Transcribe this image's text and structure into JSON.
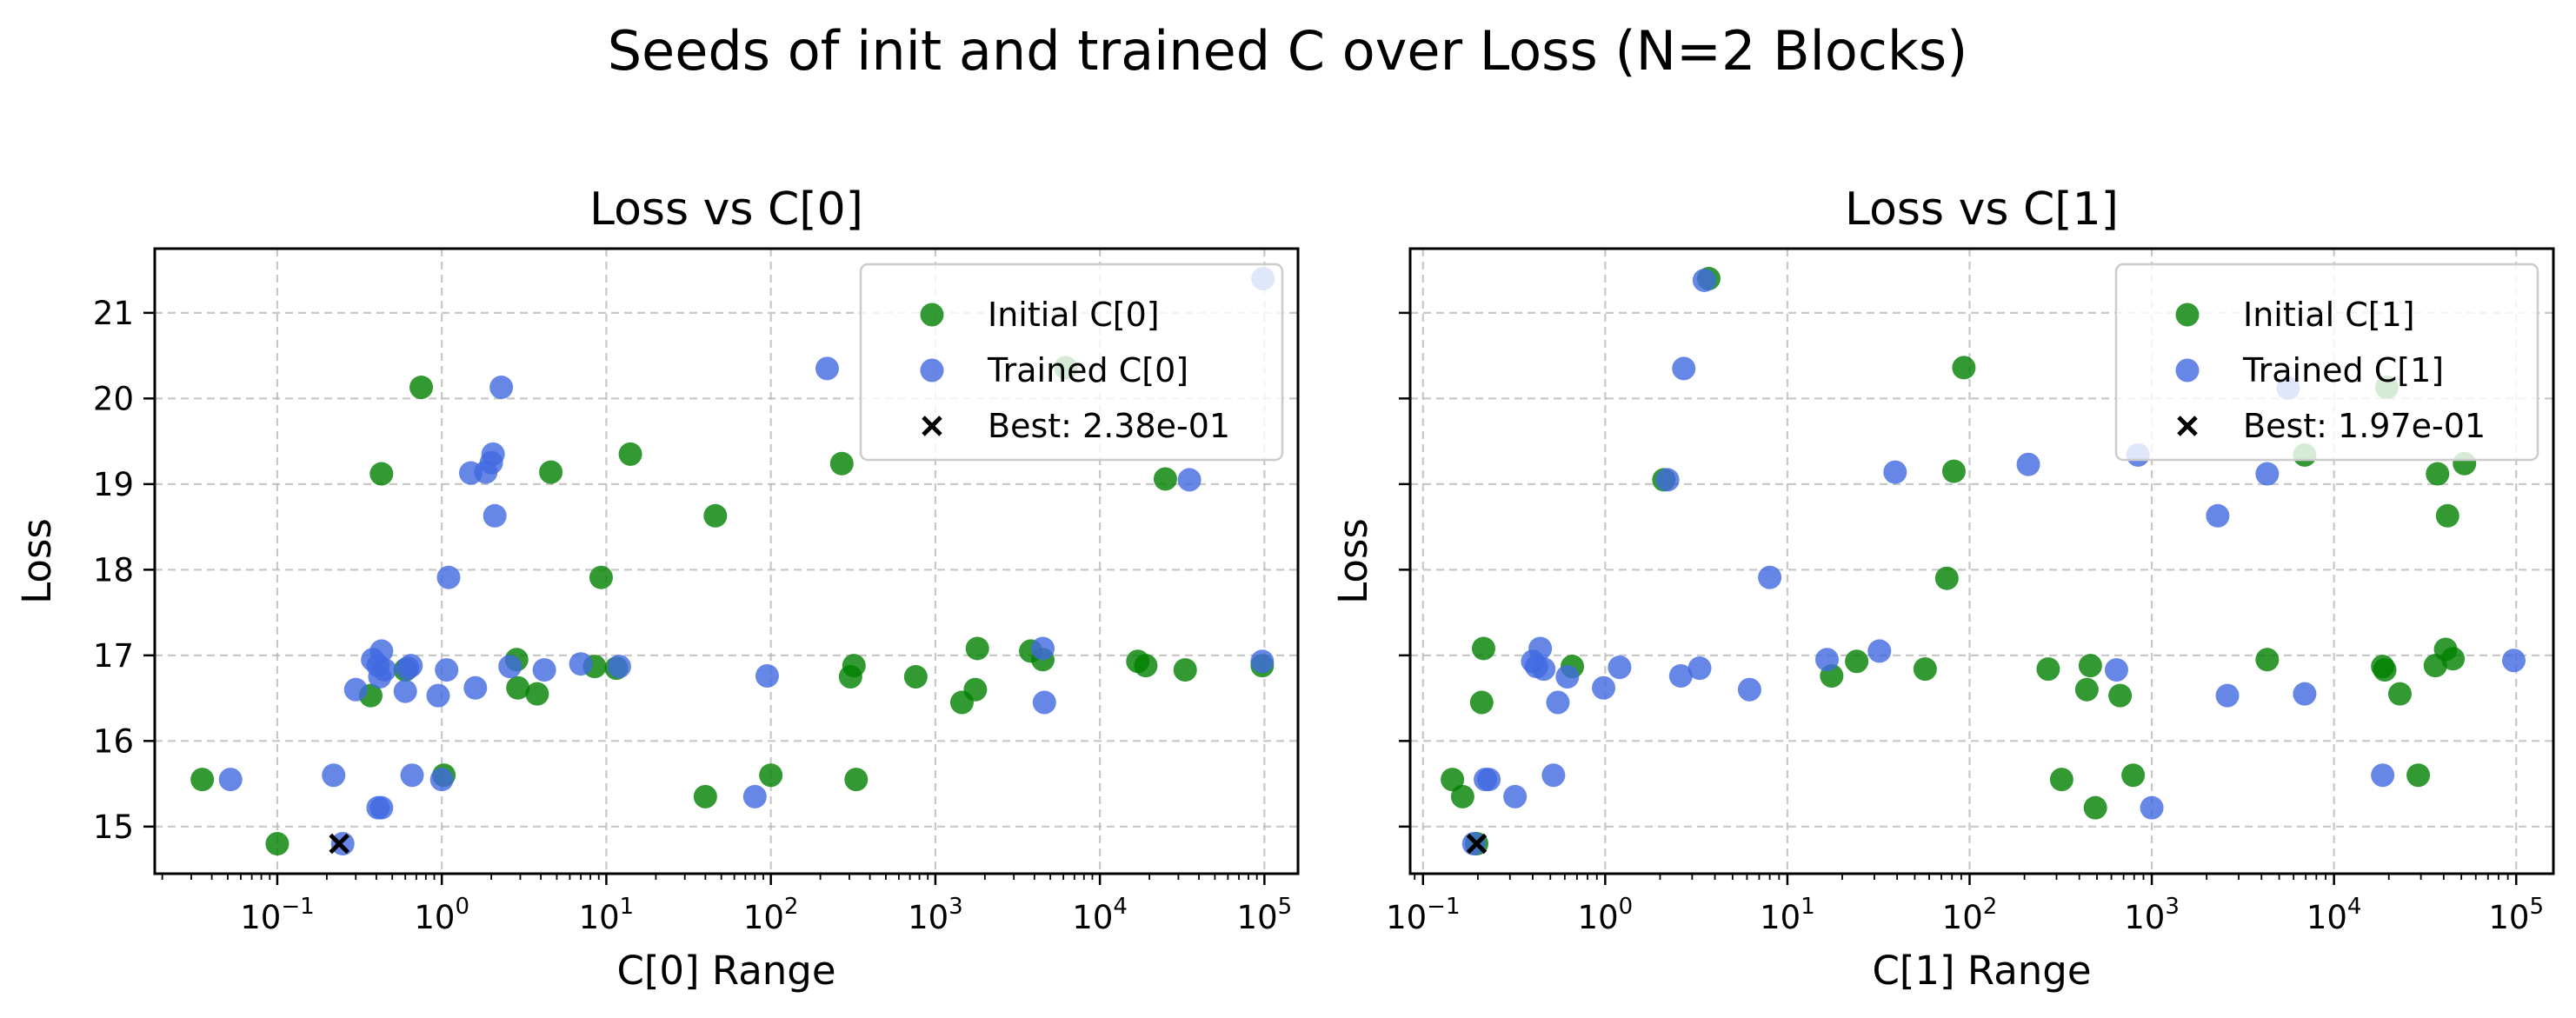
{
  "chart_data": {
    "title": "Seeds of init and trained C over Loss (N=2 Blocks)",
    "colors": {
      "initial": "#008000",
      "trained": "#4169E1",
      "best": "#000000"
    },
    "panels": [
      {
        "type": "scatter",
        "title": "Loss vs C[0]",
        "xlabel": "C[0] Range",
        "ylabel": "Loss",
        "xscale": "log",
        "xlim": [
          0.018,
          160000
        ],
        "ylim": [
          14.45,
          21.75
        ],
        "xticks": [
          0.1,
          1,
          10,
          100,
          1000,
          10000,
          100000
        ],
        "yticks": [
          15,
          16,
          17,
          18,
          19,
          20,
          21
        ],
        "grid": true,
        "legend_position": "top-right",
        "series": [
          {
            "name": "Initial C[0]",
            "role": "initial",
            "points": [
              [
                0.035,
                15.55
              ],
              [
                0.1,
                14.8
              ],
              [
                0.37,
                16.53
              ],
              [
                0.43,
                19.12
              ],
              [
                0.6,
                16.83
              ],
              [
                0.75,
                20.13
              ],
              [
                1.03,
                15.6
              ],
              [
                2.85,
                16.95
              ],
              [
                2.9,
                16.62
              ],
              [
                3.8,
                16.55
              ],
              [
                4.6,
                19.14
              ],
              [
                8.5,
                16.87
              ],
              [
                9.3,
                17.91
              ],
              [
                11.5,
                16.85
              ],
              [
                14,
                19.35
              ],
              [
                40,
                15.35
              ],
              [
                46,
                18.63
              ],
              [
                100,
                15.6
              ],
              [
                270,
                19.24
              ],
              [
                305,
                16.75
              ],
              [
                320,
                16.88
              ],
              [
                330,
                15.55
              ],
              [
                760,
                16.75
              ],
              [
                1450,
                16.45
              ],
              [
                1750,
                16.6
              ],
              [
                1800,
                17.08
              ],
              [
                3800,
                17.05
              ],
              [
                4500,
                16.95
              ],
              [
                6200,
                20.36
              ],
              [
                17000,
                16.93
              ],
              [
                19000,
                16.88
              ],
              [
                25000,
                19.06
              ],
              [
                33000,
                16.83
              ],
              [
                97000,
                16.88
              ]
            ]
          },
          {
            "name": "Trained C[0]",
            "role": "trained",
            "points": [
              [
                0.052,
                15.55
              ],
              [
                0.22,
                15.6
              ],
              [
                0.25,
                14.8
              ],
              [
                0.3,
                16.6
              ],
              [
                0.38,
                16.95
              ],
              [
                0.41,
                16.88
              ],
              [
                0.41,
                15.22
              ],
              [
                0.42,
                16.75
              ],
              [
                0.43,
                15.22
              ],
              [
                0.43,
                17.05
              ],
              [
                0.45,
                16.83
              ],
              [
                0.6,
                16.58
              ],
              [
                0.62,
                16.85
              ],
              [
                0.65,
                16.88
              ],
              [
                0.66,
                15.6
              ],
              [
                0.95,
                16.53
              ],
              [
                1.0,
                15.55
              ],
              [
                1.07,
                16.83
              ],
              [
                1.1,
                17.91
              ],
              [
                1.5,
                19.13
              ],
              [
                1.6,
                16.62
              ],
              [
                1.85,
                19.14
              ],
              [
                2.0,
                19.25
              ],
              [
                2.05,
                19.35
              ],
              [
                2.1,
                18.63
              ],
              [
                2.3,
                20.13
              ],
              [
                2.6,
                16.87
              ],
              [
                4.2,
                16.83
              ],
              [
                7.0,
                16.9
              ],
              [
                12,
                16.87
              ],
              [
                80,
                15.35
              ],
              [
                95,
                16.76
              ],
              [
                220,
                20.35
              ],
              [
                4500,
                17.08
              ],
              [
                4600,
                16.45
              ],
              [
                35000,
                19.05
              ],
              [
                97000,
                16.93
              ],
              [
                98000,
                21.4
              ]
            ]
          },
          {
            "name": "Best: 2.38e-01",
            "role": "best",
            "points": [
              [
                0.238,
                14.8
              ]
            ]
          }
        ]
      },
      {
        "type": "scatter",
        "title": "Loss vs C[1]",
        "xlabel": "C[1] Range",
        "ylabel": "Loss",
        "xscale": "log",
        "xlim": [
          0.085,
          160000
        ],
        "ylim": [
          14.45,
          21.75
        ],
        "xticks": [
          0.1,
          1,
          10,
          100,
          1000,
          10000,
          100000
        ],
        "yticks": [
          15,
          16,
          17,
          18,
          19,
          20,
          21
        ],
        "grid": true,
        "legend_position": "top-right",
        "series": [
          {
            "name": "Initial C[1]",
            "role": "initial",
            "points": [
              [
                0.145,
                15.55
              ],
              [
                0.165,
                15.35
              ],
              [
                0.197,
                14.8
              ],
              [
                0.21,
                16.45
              ],
              [
                0.215,
                17.08
              ],
              [
                0.66,
                16.87
              ],
              [
                2.1,
                19.05
              ],
              [
                3.7,
                21.4
              ],
              [
                17.5,
                16.76
              ],
              [
                24,
                16.93
              ],
              [
                57,
                16.84
              ],
              [
                75,
                17.9
              ],
              [
                82,
                19.15
              ],
              [
                93,
                20.36
              ],
              [
                270,
                16.84
              ],
              [
                320,
                15.55
              ],
              [
                440,
                16.6
              ],
              [
                460,
                16.88
              ],
              [
                490,
                15.22
              ],
              [
                670,
                16.53
              ],
              [
                790,
                15.6
              ],
              [
                4300,
                16.95
              ],
              [
                18500,
                16.87
              ],
              [
                19000,
                16.83
              ],
              [
                19500,
                20.13
              ],
              [
                23000,
                16.55
              ],
              [
                29000,
                15.6
              ],
              [
                36000,
                16.88
              ],
              [
                37000,
                19.12
              ],
              [
                41000,
                17.07
              ],
              [
                42000,
                18.63
              ],
              [
                45000,
                16.96
              ],
              [
                52000,
                19.24
              ],
              [
                6900,
                19.34
              ]
            ]
          },
          {
            "name": "Trained C[1]",
            "role": "trained",
            "points": [
              [
                0.19,
                14.8
              ],
              [
                0.22,
                15.55
              ],
              [
                0.23,
                15.55
              ],
              [
                0.32,
                15.35
              ],
              [
                0.4,
                16.93
              ],
              [
                0.42,
                16.87
              ],
              [
                0.44,
                17.08
              ],
              [
                0.46,
                16.84
              ],
              [
                0.52,
                15.6
              ],
              [
                0.55,
                16.45
              ],
              [
                0.62,
                16.75
              ],
              [
                0.98,
                16.62
              ],
              [
                1.2,
                16.86
              ],
              [
                2.2,
                19.05
              ],
              [
                2.6,
                16.76
              ],
              [
                2.7,
                20.35
              ],
              [
                3.3,
                16.85
              ],
              [
                3.5,
                21.38
              ],
              [
                6.2,
                16.6
              ],
              [
                8.0,
                17.91
              ],
              [
                16.5,
                16.95
              ],
              [
                32,
                17.05
              ],
              [
                39,
                19.14
              ],
              [
                210,
                19.23
              ],
              [
                640,
                16.83
              ],
              [
                840,
                19.34
              ],
              [
                1000,
                15.22
              ],
              [
                2300,
                18.63
              ],
              [
                2600,
                16.53
              ],
              [
                4300,
                19.12
              ],
              [
                5600,
                20.12
              ],
              [
                6900,
                16.55
              ],
              [
                18500,
                15.6
              ],
              [
                97000,
                16.94
              ]
            ]
          },
          {
            "name": "Best: 1.97e-01",
            "role": "best",
            "points": [
              [
                0.197,
                14.8
              ]
            ]
          }
        ]
      }
    ]
  }
}
